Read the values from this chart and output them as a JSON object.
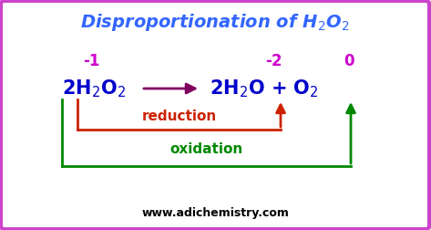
{
  "bg_color": "#ffffff",
  "border_color": "#cc44cc",
  "title_color": "#3366ff",
  "ox_color": "#cc00cc",
  "reaction_arrow_color": "#800060",
  "reduction_color": "#cc2200",
  "oxidation_color": "#008800",
  "reduction_label": "reduction",
  "oxidation_label": "oxidation",
  "website": "www.adichemistry.com",
  "website_color": "#000000",
  "equation_color": "#0000cc"
}
